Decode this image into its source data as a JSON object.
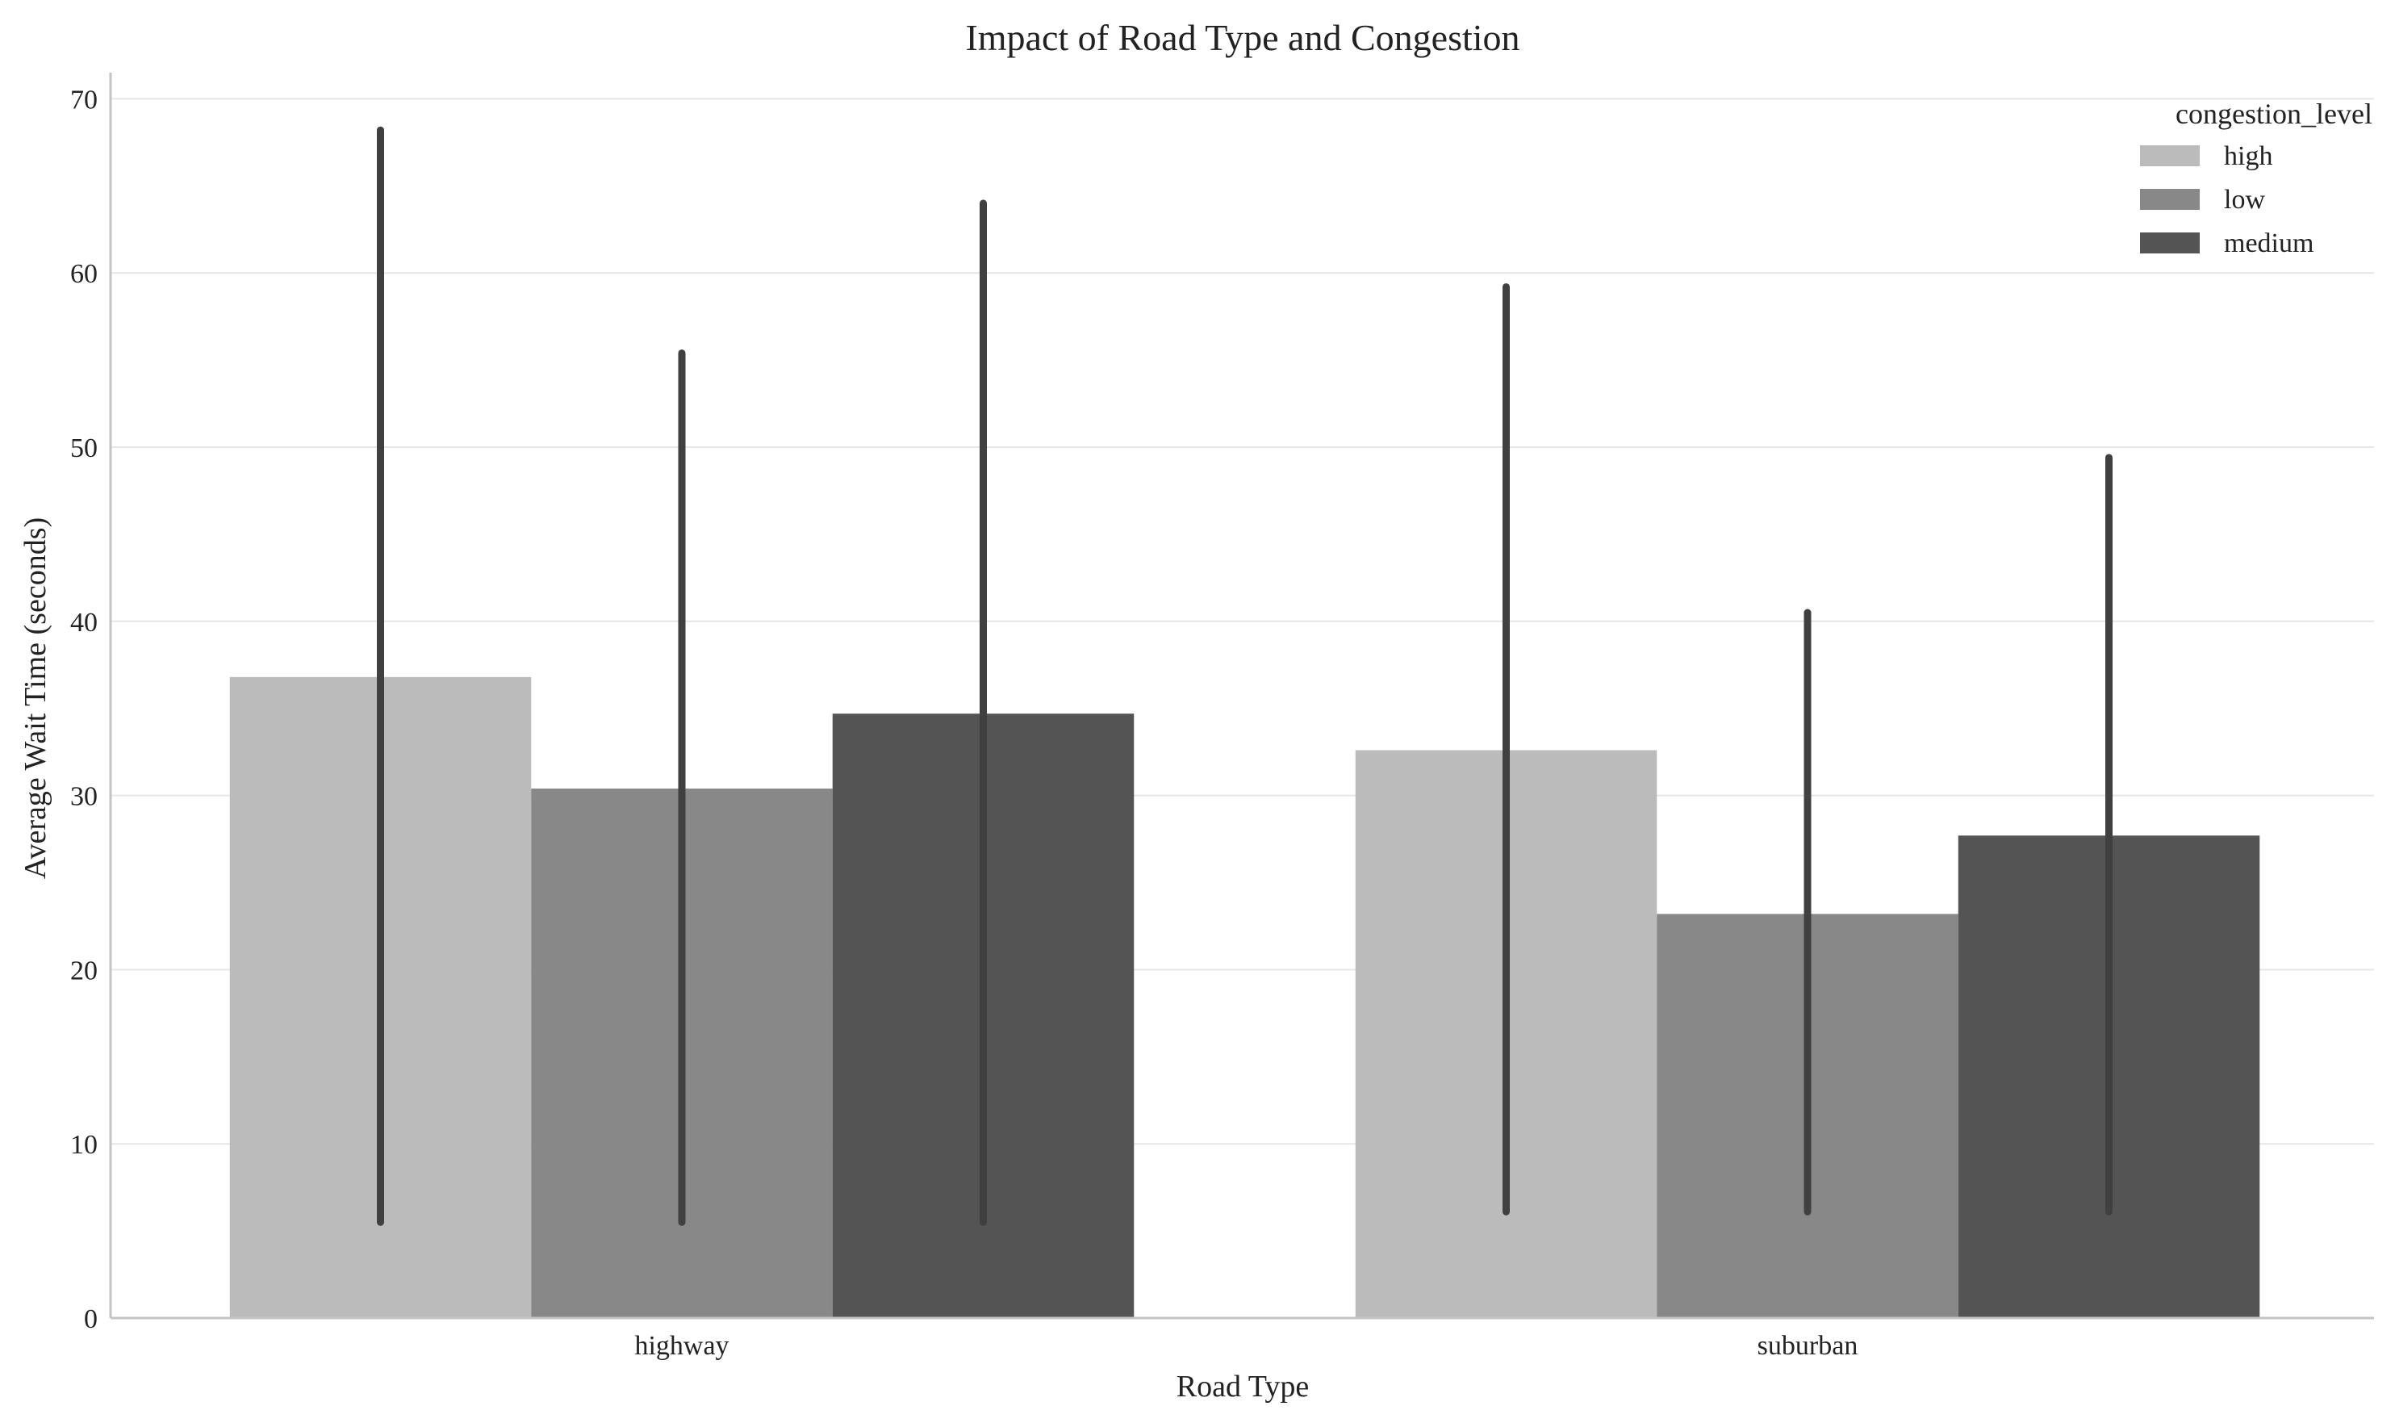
{
  "chart_data": {
    "type": "bar",
    "title": "Impact of Road Type and Congestion",
    "xlabel": "Road Type",
    "ylabel": "Average Wait Time (seconds)",
    "categories": [
      "highway",
      "suburban"
    ],
    "ylim": [
      0,
      72
    ],
    "yticks": [
      0,
      10,
      20,
      30,
      40,
      50,
      60,
      70
    ],
    "grid": "horizontal",
    "legend": {
      "title": "congestion_level",
      "placement": "top-right"
    },
    "series": [
      {
        "name": "high",
        "color": "#bbbbbb",
        "values": [
          36.8,
          32.6
        ],
        "error_low": [
          5.5,
          6.1
        ],
        "error_high": [
          68.2,
          59.2
        ]
      },
      {
        "name": "low",
        "color": "#888888",
        "values": [
          30.4,
          23.2
        ],
        "error_low": [
          5.5,
          6.1
        ],
        "error_high": [
          55.4,
          40.5
        ]
      },
      {
        "name": "medium",
        "color": "#545454",
        "values": [
          34.7,
          27.7
        ],
        "error_low": [
          5.5,
          6.1
        ],
        "error_high": [
          64.0,
          49.4
        ]
      }
    ],
    "errorbar_color": "#404040"
  }
}
